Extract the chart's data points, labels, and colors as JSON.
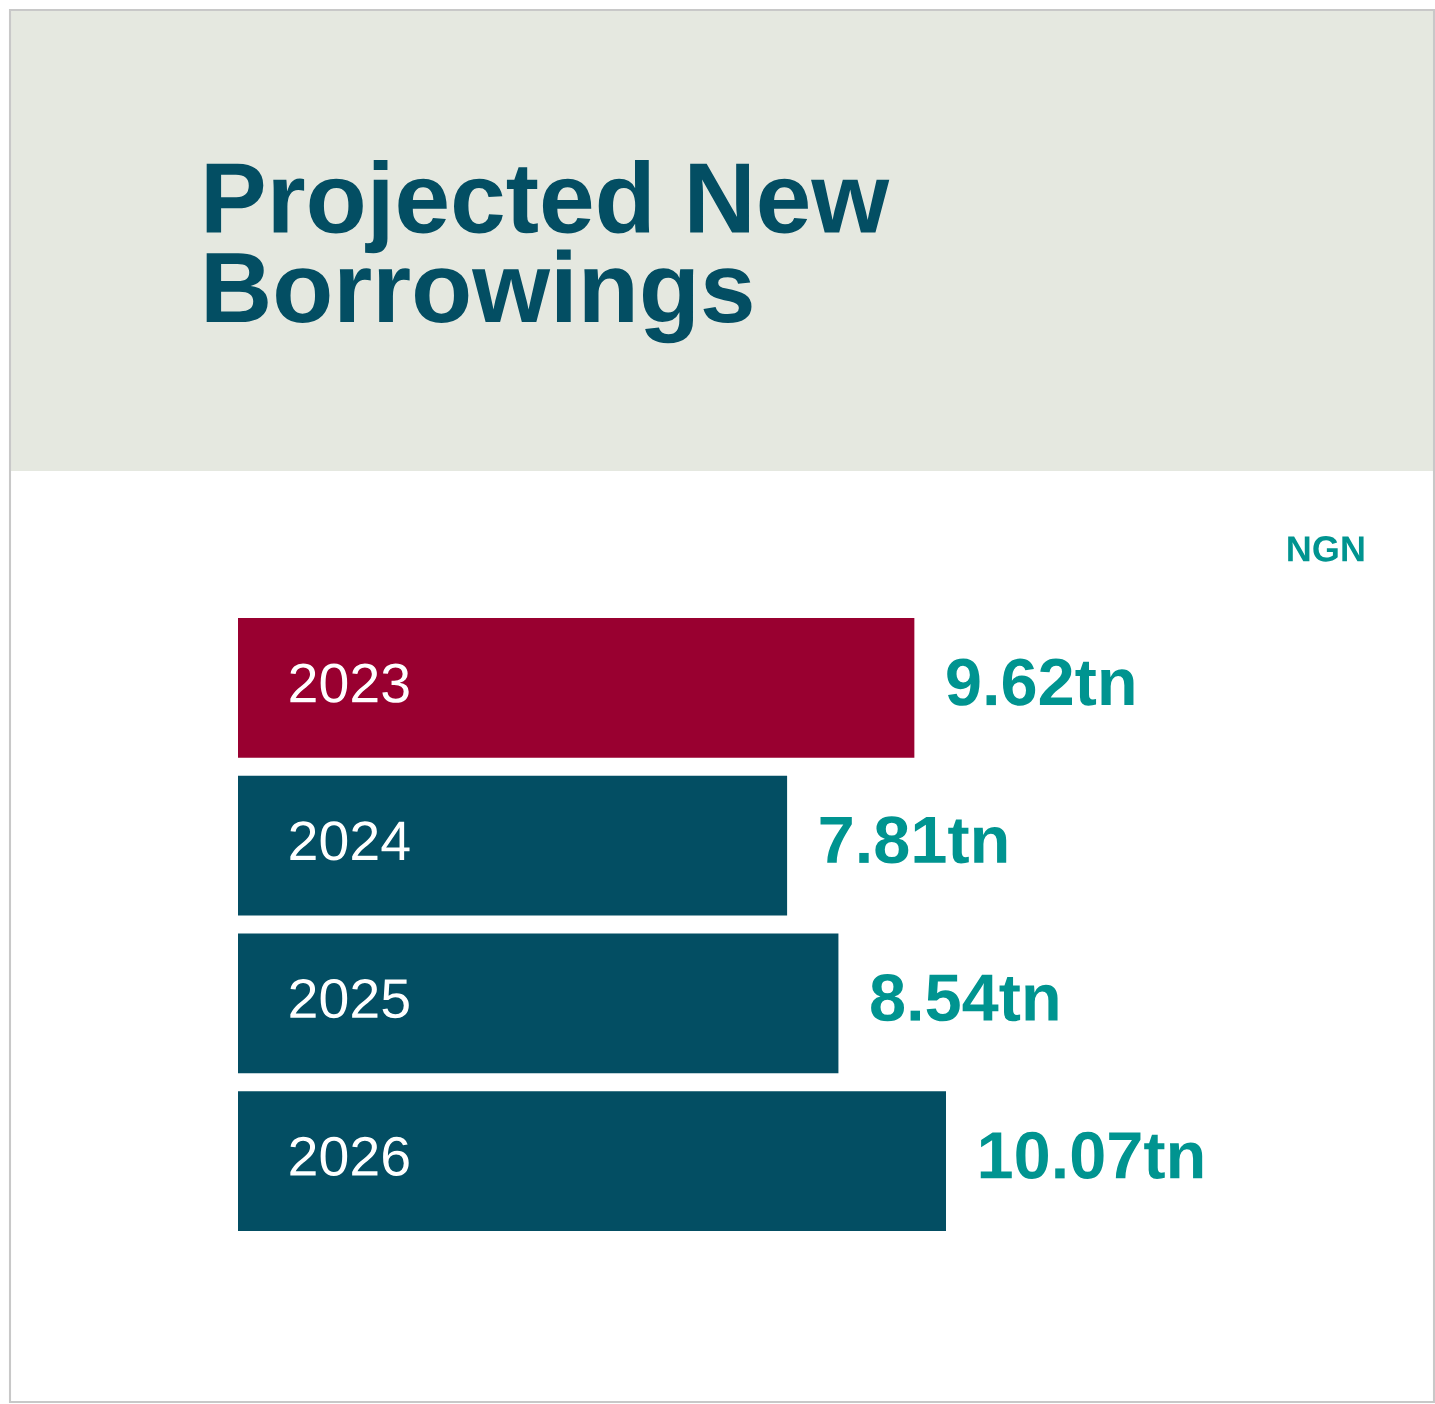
{
  "chart_data": {
    "type": "bar",
    "orientation": "horizontal",
    "title": "Projected New Borrowings",
    "annotations": [
      "NGN"
    ],
    "categories": [
      "2023",
      "2024",
      "2025",
      "2026"
    ],
    "values": [
      9.62,
      7.81,
      8.54,
      10.07
    ],
    "colors": [
      "#990030",
      "#034e63",
      "#034e63",
      "#034e63"
    ],
    "value_labels": [
      "9.62tn",
      "7.81tn",
      "8.54tn",
      "10.07tn"
    ]
  }
}
